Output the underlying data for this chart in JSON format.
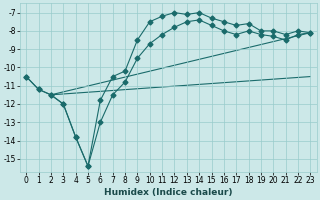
{
  "xlabel": "Humidex (Indice chaleur)",
  "bg_color": "#cce8e8",
  "grid_color": "#99cccc",
  "line_color": "#1a6b6b",
  "xlim": [
    -0.5,
    23.5
  ],
  "ylim": [
    -15.7,
    -6.5
  ],
  "xticks": [
    0,
    1,
    2,
    3,
    4,
    5,
    6,
    7,
    8,
    9,
    10,
    11,
    12,
    13,
    14,
    15,
    16,
    17,
    18,
    19,
    20,
    21,
    22,
    23
  ],
  "yticks": [
    -7,
    -8,
    -9,
    -10,
    -11,
    -12,
    -13,
    -14,
    -15
  ],
  "line1_x": [
    0,
    1,
    2,
    3,
    4,
    5,
    6,
    7,
    8,
    9,
    10,
    11,
    12,
    13,
    14,
    15,
    16,
    17,
    18,
    19,
    20,
    21,
    22,
    23
  ],
  "line1_y": [
    -10.5,
    -11.2,
    -11.5,
    -12.0,
    -13.8,
    -15.4,
    -11.8,
    -10.5,
    -10.2,
    -8.5,
    -7.5,
    -7.2,
    -7.0,
    -7.1,
    -7.0,
    -7.3,
    -7.5,
    -7.7,
    -7.6,
    -8.0,
    -8.0,
    -8.2,
    -8.0,
    -8.1
  ],
  "line2_x": [
    0,
    1,
    2,
    3,
    4,
    5,
    6,
    7,
    8,
    9,
    10,
    11,
    12,
    13,
    14,
    15,
    16,
    17,
    18,
    19,
    20,
    21,
    22,
    23
  ],
  "line2_y": [
    -10.5,
    -11.2,
    -11.5,
    -12.0,
    -13.8,
    -15.4,
    -13.0,
    -11.5,
    -10.8,
    -9.5,
    -8.7,
    -8.2,
    -7.8,
    -7.5,
    -7.4,
    -7.7,
    -8.0,
    -8.2,
    -8.0,
    -8.2,
    -8.3,
    -8.5,
    -8.2,
    -8.1
  ],
  "line3_x": [
    2,
    23
  ],
  "line3_y": [
    -11.5,
    -8.1
  ],
  "line4_x": [
    2,
    23
  ],
  "line4_y": [
    -11.5,
    -10.5
  ]
}
